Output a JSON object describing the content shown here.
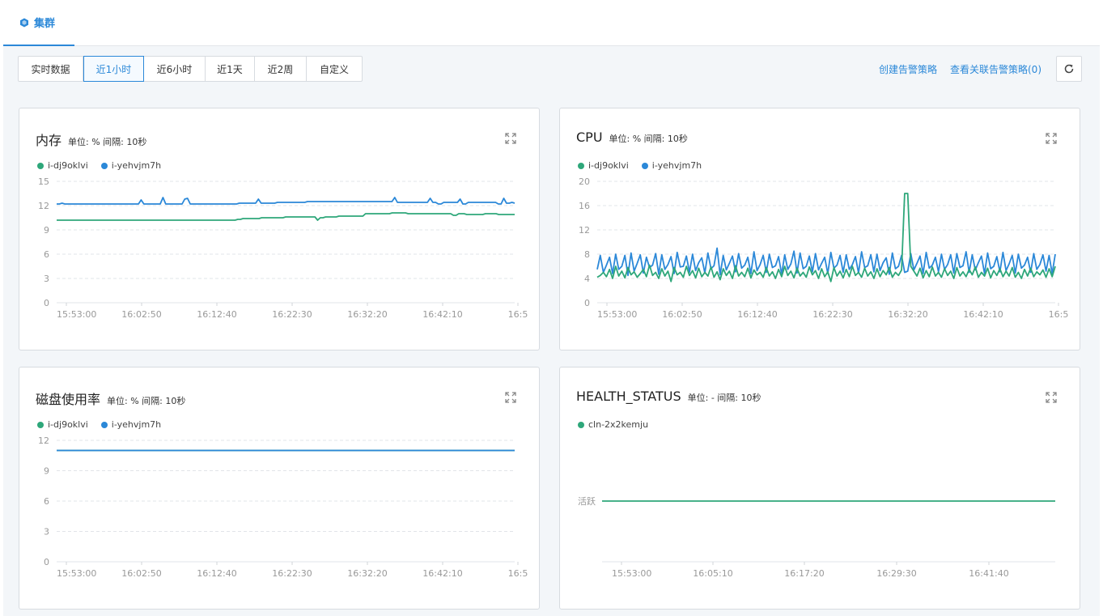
{
  "header": {
    "tab": "集群"
  },
  "toolbar": {
    "ranges": [
      "实时数据",
      "近1小时",
      "近6小时",
      "近1天",
      "近2周",
      "自定义"
    ],
    "active_index": 1,
    "create_alert": "创建告警策略",
    "view_alert": "查看关联告警策略(0)"
  },
  "colors": {
    "green": "#2ea77a",
    "blue": "#2b88d8"
  },
  "icons": {
    "tab": "cube-icon",
    "refresh": "refresh-icon",
    "expand": "expand-icon"
  },
  "cards": [
    {
      "title": "内存",
      "meta": "单位: % 间隔: 10秒",
      "legend": [
        {
          "name": "i-dj9oklvi",
          "color": "#2ea77a"
        },
        {
          "name": "i-yehvjm7h",
          "color": "#2b88d8"
        }
      ],
      "chart_data": {
        "type": "line",
        "yticks": [
          "0",
          "3",
          "6",
          "9",
          "12",
          "15"
        ],
        "ylim": [
          0,
          15
        ],
        "xticks": [
          "15:53:00",
          "16:02:50",
          "16:12:40",
          "16:22:30",
          "16:32:20",
          "16:42:10",
          "16:5"
        ],
        "series": [
          {
            "name": "i-yehvjm7h",
            "color": "#2b88d8",
            "values": [
              12.2,
              12.2,
              12.3,
              12.2,
              12.2,
              12.2,
              12.2,
              12.2,
              12.2,
              12.2,
              12.2,
              12.2,
              12.2,
              12.2,
              12.2,
              12.2,
              12.2,
              12.2,
              12.2,
              12.2,
              12.2,
              12.2,
              12.2,
              12.2,
              12.2,
              12.2,
              12.2,
              12.2,
              12.2,
              12.2,
              12.2,
              12.7,
              12.2,
              12.2,
              12.2,
              12.2,
              12.2,
              12.2,
              12.2,
              13.0,
              12.2,
              12.2,
              12.2,
              12.2,
              12.2,
              12.2,
              12.2,
              12.8,
              12.9,
              12.2,
              12.2,
              12.2,
              12.2,
              12.2,
              12.2,
              12.2,
              12.2,
              12.2,
              12.2,
              12.2,
              12.2,
              12.2,
              12.2,
              12.2,
              12.2,
              12.2,
              12.2,
              12.3,
              12.3,
              12.3,
              12.3,
              12.3,
              12.3,
              12.3,
              12.8,
              12.3,
              12.3,
              12.3,
              12.3,
              12.3,
              12.3,
              12.4,
              12.4,
              12.4,
              12.4,
              12.4,
              12.4,
              12.4,
              12.4,
              12.4,
              12.4,
              12.4,
              12.5,
              12.5,
              12.5,
              12.5,
              12.5,
              12.5,
              12.5,
              12.5,
              12.5,
              12.5,
              12.5,
              12.5,
              12.5,
              12.5,
              12.5,
              12.5,
              12.5,
              12.5,
              12.5,
              12.5,
              12.5,
              12.5,
              12.5,
              12.5,
              12.5,
              12.5,
              12.5,
              12.5,
              12.5,
              12.5,
              12.5,
              12.5,
              13.0,
              12.4,
              12.4,
              12.4,
              12.4,
              12.4,
              12.4,
              12.4,
              12.4,
              12.4,
              12.4,
              12.4,
              12.4,
              12.9,
              12.4,
              12.4,
              12.2,
              12.2,
              12.4,
              12.4,
              12.4,
              12.4,
              12.4,
              12.4,
              12.8,
              12.2,
              12.2,
              12.4,
              12.4,
              12.4,
              12.4,
              12.4,
              12.4,
              12.4,
              12.4,
              12.4,
              12.4,
              12.4,
              12.2,
              12.2,
              12.9,
              12.3,
              12.3,
              12.4,
              12.3
            ]
          },
          {
            "name": "i-dj9oklvi",
            "color": "#2ea77a",
            "values": [
              10.2,
              10.2,
              10.2,
              10.2,
              10.2,
              10.2,
              10.2,
              10.2,
              10.2,
              10.2,
              10.2,
              10.2,
              10.2,
              10.2,
              10.2,
              10.2,
              10.2,
              10.2,
              10.2,
              10.2,
              10.2,
              10.2,
              10.2,
              10.2,
              10.2,
              10.2,
              10.2,
              10.2,
              10.2,
              10.2,
              10.2,
              10.2,
              10.2,
              10.2,
              10.2,
              10.2,
              10.2,
              10.2,
              10.2,
              10.2,
              10.2,
              10.2,
              10.2,
              10.2,
              10.2,
              10.2,
              10.2,
              10.2,
              10.2,
              10.2,
              10.2,
              10.2,
              10.2,
              10.2,
              10.2,
              10.2,
              10.2,
              10.2,
              10.2,
              10.2,
              10.2,
              10.2,
              10.2,
              10.2,
              10.2,
              10.2,
              10.2,
              10.2,
              10.3,
              10.3,
              10.4,
              10.4,
              10.4,
              10.4,
              10.4,
              10.4,
              10.4,
              10.5,
              10.5,
              10.5,
              10.5,
              10.5,
              10.5,
              10.5,
              10.5,
              10.5,
              10.6,
              10.6,
              10.6,
              10.6,
              10.6,
              10.6,
              10.6,
              10.6,
              10.6,
              10.6,
              10.6,
              10.6,
              10.2,
              10.5,
              10.5,
              10.6,
              10.6,
              10.6,
              10.6,
              10.6,
              10.7,
              10.7,
              10.7,
              10.7,
              10.7,
              10.7,
              10.7,
              10.7,
              10.7,
              10.7,
              11.0,
              11.0,
              11.0,
              11.0,
              11.0,
              11.0,
              11.0,
              11.0,
              11.0,
              11.0,
              11.1,
              11.1,
              11.1,
              11.1,
              11.1,
              11.1,
              11.0,
              11.0,
              11.0,
              11.0,
              11.0,
              11.0,
              11.0,
              11.0,
              11.0,
              11.0,
              11.0,
              11.0,
              11.0,
              11.0,
              11.0,
              11.0,
              11.0,
              10.8,
              10.8,
              11.0,
              11.0,
              11.0,
              10.9,
              10.9,
              10.9,
              10.9,
              10.9,
              10.9,
              10.9,
              11.0,
              11.0,
              11.0,
              11.0,
              11.0,
              10.9,
              10.9,
              10.9,
              10.9,
              10.9,
              10.9,
              10.9
            ]
          }
        ]
      }
    },
    {
      "title": "CPU",
      "meta": "单位: % 间隔: 10秒",
      "legend": [
        {
          "name": "i-dj9oklvi",
          "color": "#2ea77a"
        },
        {
          "name": "i-yehvjm7h",
          "color": "#2b88d8"
        }
      ],
      "chart_data": {
        "type": "line",
        "yticks": [
          "0",
          "4",
          "8",
          "12",
          "16",
          "20"
        ],
        "ylim": [
          0,
          20
        ],
        "xticks": [
          "15:53:00",
          "16:02:50",
          "16:12:40",
          "16:22:30",
          "16:32:20",
          "16:42:10",
          "16:5"
        ],
        "series": [
          {
            "name": "i-yehvjm7h",
            "color": "#2b88d8",
            "values": [
              5.5,
              7.8,
              5.0,
              6.2,
              7.5,
              4.8,
              8.0,
              5.5,
              6.0,
              7.8,
              4.5,
              8.2,
              5.2,
              6.5,
              7.9,
              4.9,
              7.5,
              5.8,
              6.2,
              8.1,
              4.7,
              7.9,
              5.5,
              6.3,
              7.6,
              4.8,
              8.3,
              5.9,
              6.0,
              7.7,
              5.0,
              8.0,
              5.3,
              6.6,
              7.4,
              4.9,
              8.2,
              5.6,
              6.1,
              9.0,
              4.6,
              7.8,
              5.4,
              6.5,
              7.7,
              5.1,
              8.1,
              5.7,
              6.2,
              7.5,
              4.8,
              8.4,
              5.3,
              6.3,
              7.8,
              5.0,
              8.0,
              5.8,
              6.1,
              7.6,
              4.7,
              7.9,
              5.5,
              6.4,
              8.5,
              4.9,
              8.2,
              5.6,
              6.0,
              7.7,
              5.1,
              8.1,
              5.4,
              6.5,
              7.5,
              4.8,
              8.3,
              5.7,
              6.2,
              7.8,
              5.0,
              7.9,
              5.5,
              6.3,
              7.6,
              4.9,
              8.4,
              5.8,
              6.1,
              7.9,
              5.1,
              8.0,
              5.3,
              6.6,
              7.4,
              4.7,
              8.2,
              5.6,
              6.0,
              7.8,
              5.0,
              5.2,
              8.1,
              5.4,
              6.5,
              7.7,
              4.8,
              8.3,
              5.7,
              6.2,
              7.5,
              5.1,
              8.0,
              5.5,
              6.3,
              7.9,
              4.9,
              8.1,
              5.8,
              6.1,
              8.4,
              5.0,
              7.9,
              5.4,
              6.6,
              7.7,
              4.8,
              8.2,
              5.6,
              6.0,
              7.6,
              5.1,
              8.3,
              5.3,
              6.4,
              7.8,
              4.9,
              8.0,
              5.7,
              6.2,
              7.5,
              5.0,
              8.1,
              5.5,
              6.3,
              7.9,
              5.2,
              7.8,
              4.8,
              8.0
            ]
          },
          {
            "name": "i-dj9oklvi",
            "color": "#2ea77a",
            "values": [
              4.2,
              4.5,
              5.0,
              4.3,
              5.5,
              4.0,
              6.0,
              4.4,
              5.2,
              4.1,
              5.8,
              4.6,
              5.1,
              4.2,
              4.8,
              5.5,
              4.3,
              6.2,
              4.5,
              5.0,
              4.0,
              5.6,
              4.4,
              5.2,
              3.5,
              5.8,
              4.6,
              5.0,
              4.2,
              6.0,
              4.5,
              5.3,
              4.1,
              5.7,
              4.3,
              5.0,
              4.4,
              5.9,
              4.2,
              5.1,
              3.8,
              5.6,
              4.5,
              5.2,
              4.0,
              6.1,
              4.4,
              5.0,
              4.3,
              5.7,
              4.1,
              5.4,
              4.6,
              5.0,
              4.2,
              5.8,
              4.4,
              5.1,
              4.0,
              5.5,
              4.3,
              6.0,
              4.5,
              5.2,
              4.1,
              5.7,
              4.4,
              5.0,
              4.2,
              5.9,
              4.6,
              5.3,
              4.0,
              5.6,
              4.3,
              5.1,
              3.5,
              5.8,
              4.4,
              5.2,
              4.1,
              5.5,
              4.3,
              6.0,
              4.5,
              5.0,
              4.2,
              5.7,
              4.4,
              5.1,
              4.0,
              5.6,
              4.3,
              5.3,
              4.6,
              5.8,
              4.2,
              5.0,
              4.5,
              5.4,
              18.0,
              18.0,
              6.0,
              5.2,
              4.4,
              5.7,
              4.1,
              5.3,
              4.3,
              5.9,
              4.4,
              5.0,
              4.2,
              5.6,
              4.5,
              5.2,
              4.0,
              5.8,
              4.4,
              5.1,
              4.3,
              5.5,
              4.6,
              5.9,
              4.2,
              5.0,
              4.4,
              5.7,
              4.1,
              5.3,
              4.5,
              5.6,
              4.3,
              5.2,
              4.4,
              5.8,
              4.2,
              5.0,
              4.0,
              5.5,
              4.4,
              5.7,
              4.3,
              5.1,
              4.6,
              5.4,
              4.2,
              5.6,
              4.3,
              6.0
            ]
          }
        ]
      }
    },
    {
      "title": "磁盘使用率",
      "meta": "单位: % 间隔: 10秒",
      "legend": [
        {
          "name": "i-dj9oklvi",
          "color": "#2ea77a"
        },
        {
          "name": "i-yehvjm7h",
          "color": "#2b88d8"
        }
      ],
      "chart_data": {
        "type": "line",
        "yticks": [
          "0",
          "3",
          "6",
          "9",
          "12"
        ],
        "ylim": [
          0,
          12
        ],
        "xticks": [
          "15:53:00",
          "16:02:50",
          "16:12:40",
          "16:22:30",
          "16:32:20",
          "16:42:10",
          "16:5"
        ],
        "series": [
          {
            "name": "i-dj9oklvi",
            "color": "#2ea77a",
            "values": [
              11.0,
              11.0,
              11.0,
              11.0,
              11.0,
              11.0,
              11.0,
              11.0,
              11.0,
              11.0
            ]
          },
          {
            "name": "i-yehvjm7h",
            "color": "#2b88d8",
            "values": [
              11.0,
              11.0,
              11.0,
              11.0,
              11.0,
              11.0,
              11.0,
              11.0,
              11.0,
              11.0
            ]
          }
        ]
      }
    },
    {
      "title": "HEALTH_STATUS",
      "meta": "单位: - 间隔: 10秒",
      "legend": [
        {
          "name": "cln-2x2kemju",
          "color": "#2ea77a"
        }
      ],
      "chart_data": {
        "type": "line",
        "ycategories": [
          "活跃"
        ],
        "xticks": [
          "15:53:00",
          "16:05:10",
          "16:17:20",
          "16:29:30",
          "16:41:40"
        ],
        "series": [
          {
            "name": "cln-2x2kemju",
            "color": "#2ea77a",
            "values": [
              "活跃",
              "活跃",
              "活跃",
              "活跃",
              "活跃",
              "活跃",
              "活跃",
              "活跃",
              "活跃",
              "活跃"
            ]
          }
        ]
      }
    }
  ]
}
